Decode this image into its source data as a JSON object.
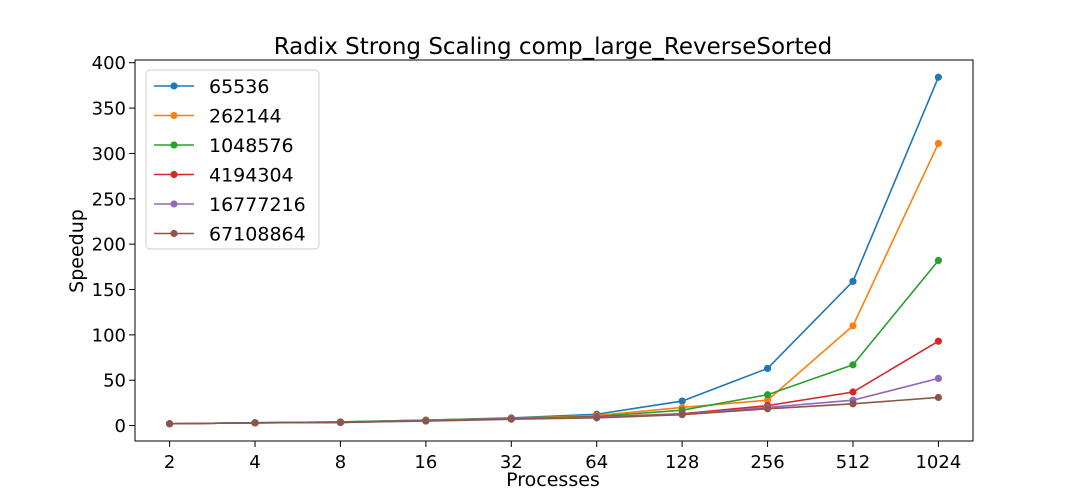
{
  "chart_data": {
    "type": "line",
    "title": "Radix Strong Scaling comp_large_ReverseSorted",
    "xlabel": "Processes",
    "ylabel": "Speedup",
    "x_scale": "log2",
    "categories": [
      "2",
      "4",
      "8",
      "16",
      "32",
      "64",
      "128",
      "256",
      "512",
      "1024"
    ],
    "x": [
      2,
      4,
      8,
      16,
      32,
      64,
      128,
      256,
      512,
      1024
    ],
    "yticks": [
      "0",
      "50",
      "100",
      "150",
      "200",
      "250",
      "300",
      "350",
      "400"
    ],
    "ylim": [
      -17,
      403
    ],
    "grid": false,
    "legend_position": "top-left",
    "series": [
      {
        "name": "65536",
        "color": "#1f77b4",
        "values": [
          2,
          3,
          4,
          6,
          8.5,
          12.5,
          27,
          63,
          159,
          384
        ]
      },
      {
        "name": "262144",
        "color": "#ff7f0e",
        "values": [
          2,
          3,
          3.5,
          6,
          8,
          11,
          20,
          28,
          110,
          311
        ]
      },
      {
        "name": "1048576",
        "color": "#2ca02c",
        "values": [
          2,
          3,
          4,
          6,
          8,
          10,
          17,
          34,
          67,
          182
        ]
      },
      {
        "name": "4194304",
        "color": "#d62728",
        "values": [
          2,
          3,
          3.5,
          5.5,
          7.5,
          9.5,
          13,
          22,
          37,
          93
        ]
      },
      {
        "name": "16777216",
        "color": "#9467bd",
        "values": [
          2,
          3,
          3.5,
          5.5,
          7.5,
          9,
          12.5,
          20,
          28,
          52
        ]
      },
      {
        "name": "67108864",
        "color": "#8c564b",
        "values": [
          2,
          3,
          3.5,
          5,
          7,
          8.5,
          12,
          18.5,
          24,
          31
        ]
      }
    ]
  }
}
